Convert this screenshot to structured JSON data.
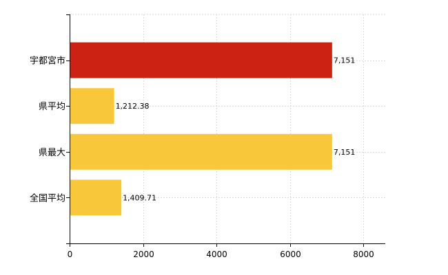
{
  "chart_data": {
    "type": "bar",
    "orientation": "horizontal",
    "categories": [
      "宇都宮市",
      "県平均",
      "県最大",
      "全国平均"
    ],
    "values": [
      7151,
      1212.38,
      7151,
      1409.71
    ],
    "value_labels": [
      "7,151",
      "1,212.38",
      "7,151",
      "1,409.71"
    ],
    "colors": [
      "#cc2214",
      "#f9c73a",
      "#f9c73a",
      "#f9c73a"
    ],
    "xlim": [
      0,
      8600
    ],
    "x_ticks": [
      0,
      2000,
      4000,
      6000,
      8000
    ],
    "x_tick_labels": [
      "0",
      "2000",
      "4000",
      "6000",
      "8000"
    ],
    "grid": true,
    "title": "",
    "xlabel": "",
    "ylabel": ""
  }
}
